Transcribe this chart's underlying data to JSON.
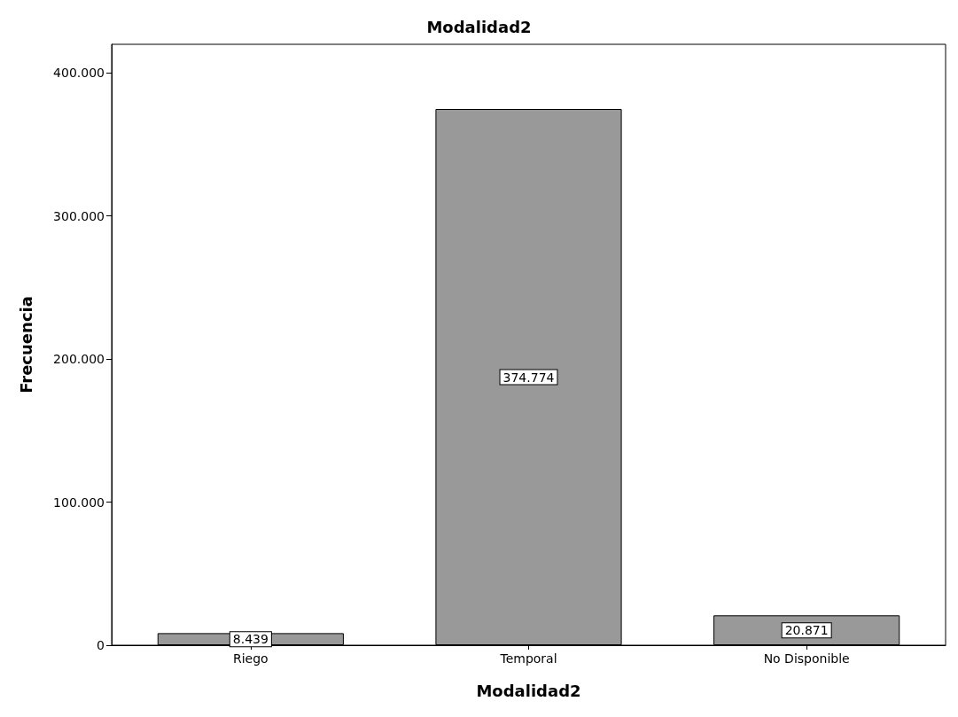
{
  "chart_data": {
    "type": "bar",
    "title": "Modalidad2",
    "xlabel": "Modalidad2",
    "ylabel": "Frecuencia",
    "categories": [
      "Riego",
      "Temporal",
      "No Disponible"
    ],
    "values": [
      8439,
      374774,
      20871
    ],
    "value_labels": [
      "8.439",
      "374.774",
      "20.871"
    ],
    "color": "#999999",
    "ylim": [
      0,
      420000
    ],
    "yticks": [
      {
        "value": 0,
        "label": "0"
      },
      {
        "value": 100000,
        "label": "100.000"
      },
      {
        "value": 200000,
        "label": "200.000"
      },
      {
        "value": 300000,
        "label": "300.000"
      },
      {
        "value": 400000,
        "label": "400.000"
      }
    ],
    "grid": false
  }
}
